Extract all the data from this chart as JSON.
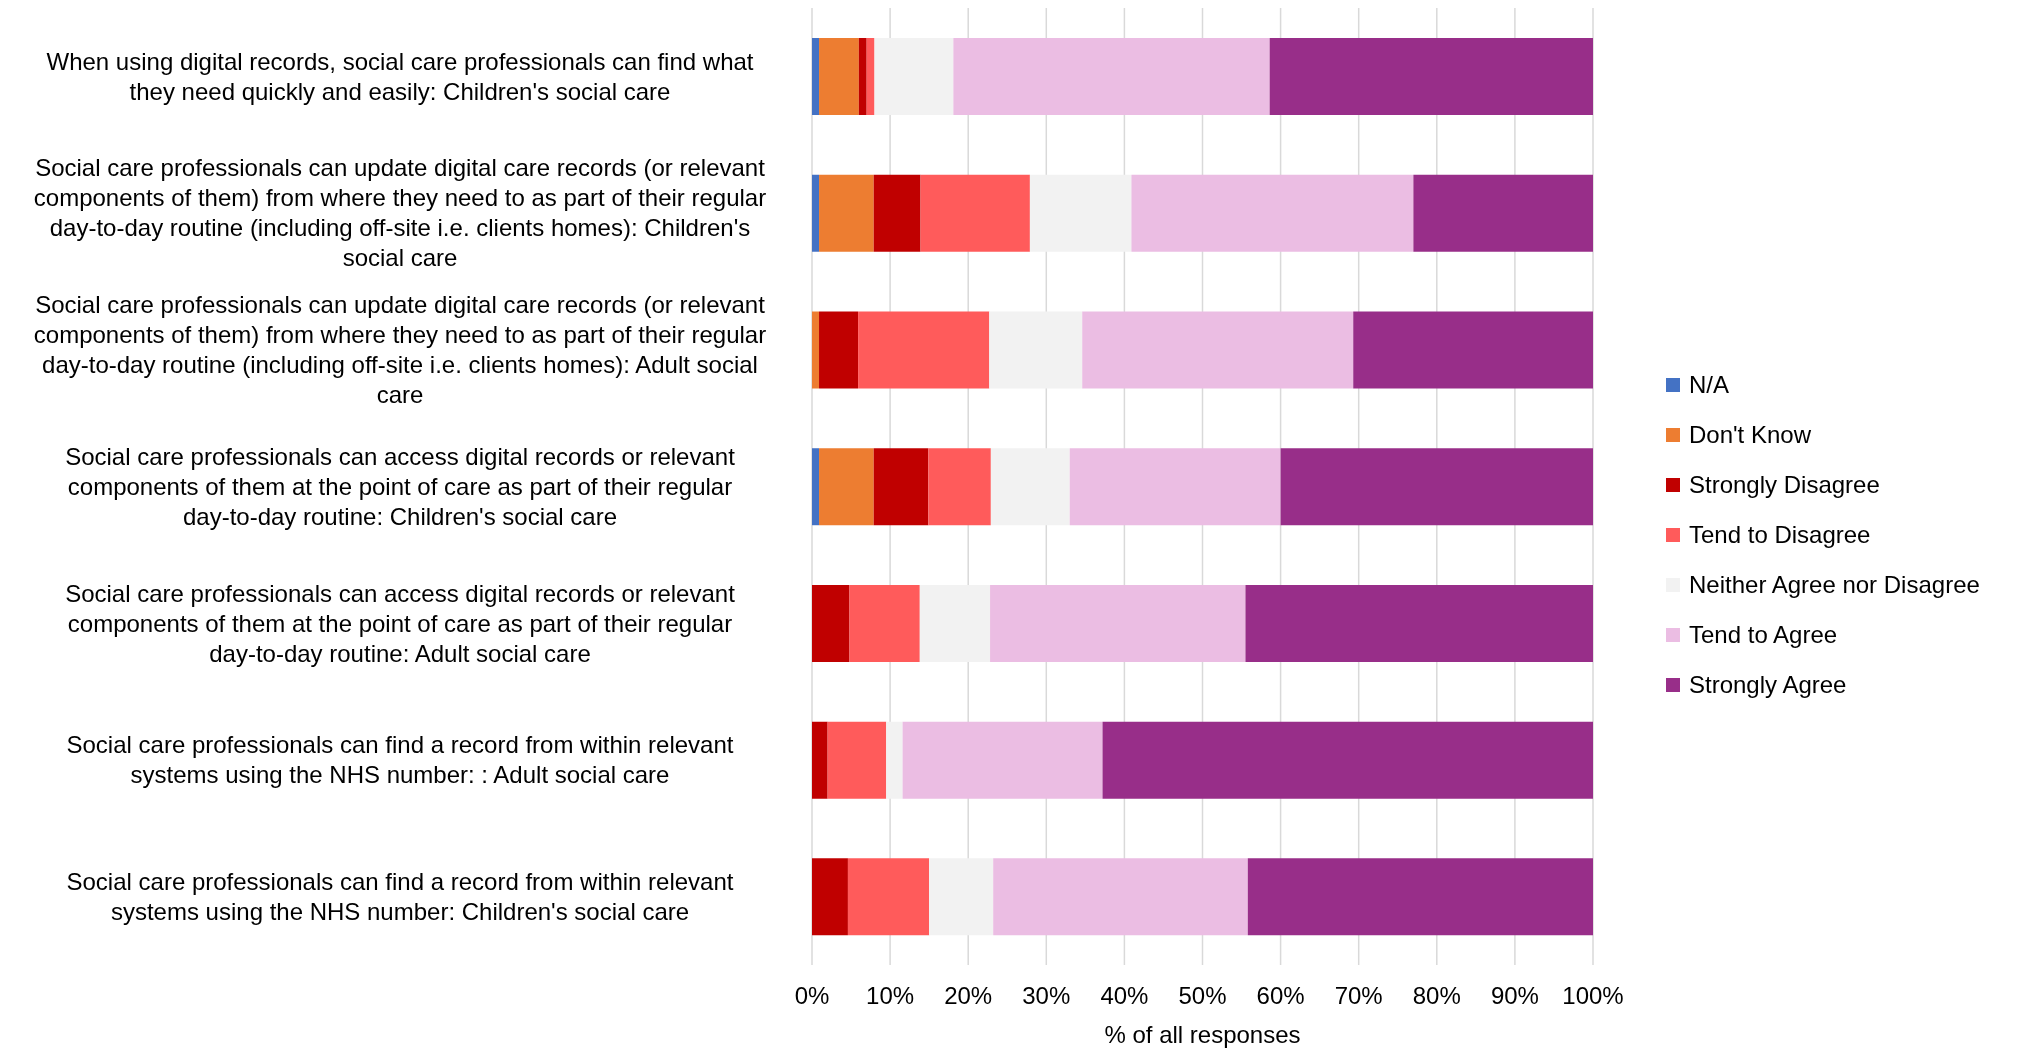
{
  "chart_data": {
    "type": "bar",
    "orientation": "horizontal",
    "stacked": true,
    "xlabel": "% of all responses",
    "categories": [
      "When using digital records, social care professionals can find what they need quickly and easily: Children's social care",
      "Social care professionals can update digital care records (or relevant components of them) from where they need to as part of their regular day-to-day routine (including off-site i.e. clients homes): Children's social care",
      "Social care professionals can update digital care records (or relevant components of them) from where they need to as part of their regular day-to-day routine (including off-site i.e. clients homes): Adult social care",
      "Social care professionals can access digital records or relevant components of them at the point of care as part of their regular day-to-day routine: Children's social care",
      "Social care professionals can access digital records or relevant components of them at the point of care as part of their regular day-to-day routine: Adult social care",
      "Social care professionals can find a record from within relevant systems using the NHS number: : Adult social care",
      "Social care professionals can find a record from within relevant systems using the NHS number: Children's social care"
    ],
    "series": [
      {
        "name": "N/A",
        "color": "#4472c4",
        "values": [
          0.9,
          0.9,
          null,
          0.9,
          null,
          null,
          null
        ]
      },
      {
        "name": "Don't Know",
        "color": "#ed7d31",
        "values": [
          5.1,
          7.0,
          0.9,
          7.0,
          null,
          null,
          null
        ]
      },
      {
        "name": "Strongly Disagree",
        "color": "#c00000",
        "values": [
          1.0,
          6.0,
          5.0,
          7.0,
          4.8,
          2.0,
          4.6
        ]
      },
      {
        "name": "Tend to Disagree",
        "color": "#ff5b5b",
        "values": [
          1.0,
          14.0,
          16.8,
          8.0,
          9.0,
          7.5,
          10.4
        ]
      },
      {
        "name": "Neither Agree nor Disagree",
        "color": "#f2f2f2",
        "values": [
          10.1,
          13.0,
          11.9,
          10.1,
          9.0,
          2.1,
          8.2
        ]
      },
      {
        "name": "Tend to Agree",
        "color": "#ebbde3",
        "values": [
          40.5,
          36.1,
          34.7,
          27.0,
          32.7,
          25.6,
          32.6
        ]
      },
      {
        "name": "Strongly Agree",
        "color": "#982e89",
        "values": [
          41.4,
          23.0,
          30.7,
          40.0,
          44.5,
          62.8,
          44.2
        ]
      }
    ],
    "xlim": [
      0,
      100
    ],
    "xticks": [
      {
        "value": 0,
        "label": "0%"
      },
      {
        "value": 10,
        "label": "10%"
      },
      {
        "value": 20,
        "label": "20%"
      },
      {
        "value": 30,
        "label": "30%"
      },
      {
        "value": 40,
        "label": "40%"
      },
      {
        "value": 50,
        "label": "50%"
      },
      {
        "value": 60,
        "label": "60%"
      },
      {
        "value": 70,
        "label": "70%"
      },
      {
        "value": 80,
        "label": "80%"
      },
      {
        "value": 90,
        "label": "90%"
      },
      {
        "value": 100,
        "label": "100%"
      }
    ],
    "grid": "x",
    "legend": "right"
  }
}
